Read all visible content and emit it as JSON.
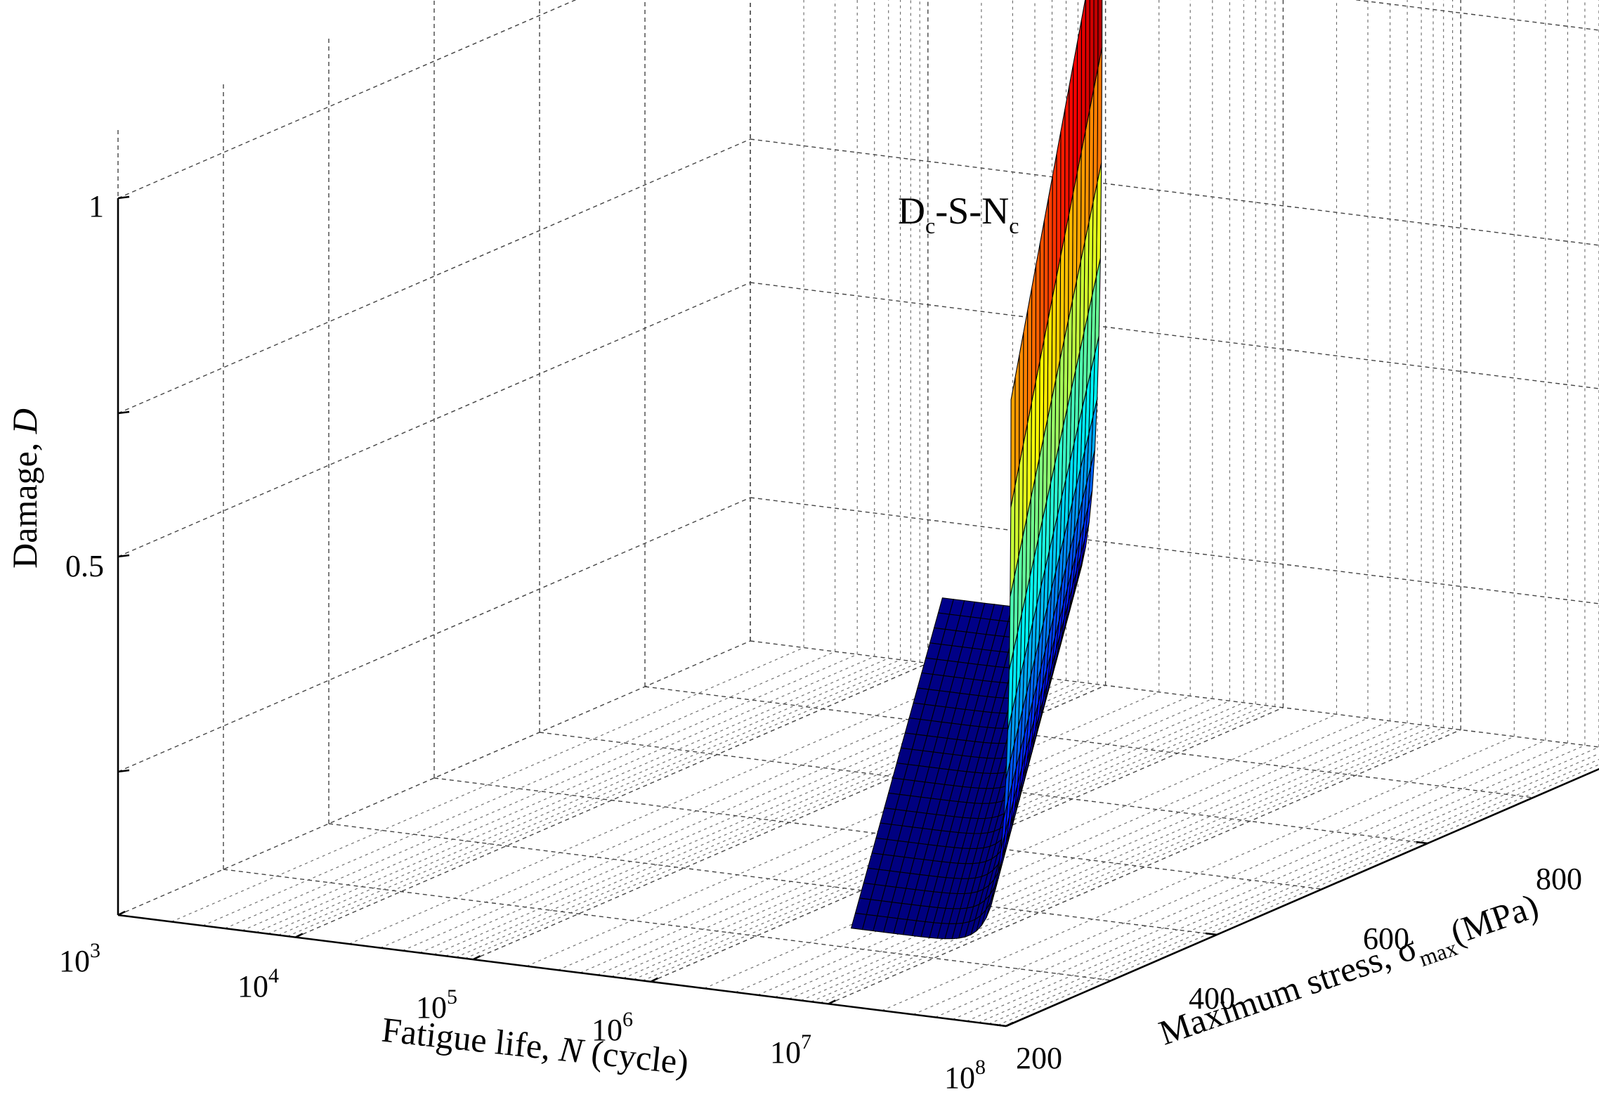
{
  "chart_data": {
    "type": "surface",
    "annotation": {
      "base": "D",
      "sub1": "c",
      "mid": "-S-N",
      "sub2": "c"
    },
    "axes": {
      "x": {
        "label_prefix": "Fatigue life, ",
        "label_var": "N",
        "label_suffix": " (cycle)",
        "scale": "log",
        "range": [
          1000,
          100000000
        ],
        "ticks": [
          {
            "base": "10",
            "exp": "3"
          },
          {
            "base": "10",
            "exp": "4"
          },
          {
            "base": "10",
            "exp": "5"
          },
          {
            "base": "10",
            "exp": "6"
          },
          {
            "base": "10",
            "exp": "7"
          },
          {
            "base": "10",
            "exp": "8"
          }
        ]
      },
      "y": {
        "label_prefix": "Maximum stress, ",
        "label_var": "σ",
        "label_sub": "max",
        "label_suffix": "(MPa)",
        "range": [
          200,
          800
        ],
        "ticks": [
          "200",
          "400",
          "600",
          "800"
        ]
      },
      "z": {
        "label_prefix": "Damage, ",
        "label_var": "D",
        "range": [
          0,
          1
        ],
        "ticks": [
          "",
          "0.5",
          "1"
        ]
      }
    },
    "surface": {
      "description_only": false,
      "x_log10_range": [
        5.1,
        7.85
      ],
      "y_range": [
        230,
        780
      ],
      "z_range": [
        0.1,
        1.1
      ],
      "colormap": "jet"
    },
    "grid": true
  }
}
